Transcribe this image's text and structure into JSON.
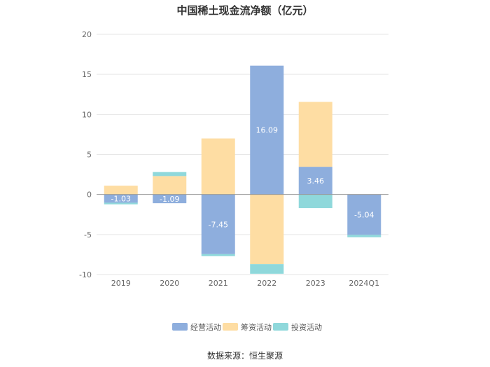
{
  "chart_data": {
    "type": "bar",
    "stacked": true,
    "title": "中国稀土现金流净额（亿元）",
    "categories": [
      "2019",
      "2020",
      "2021",
      "2022",
      "2023",
      "2024Q1"
    ],
    "series": [
      {
        "name": "经营活动",
        "color": "#8eaedd",
        "values": [
          -1.03,
          -1.09,
          -7.45,
          16.09,
          3.46,
          -5.04
        ]
      },
      {
        "name": "筹资活动",
        "color": "#fedda3",
        "values": [
          1.1,
          2.3,
          7.0,
          -8.7,
          8.1,
          0
        ]
      },
      {
        "name": "投资活动",
        "color": "#8fd8db",
        "values": [
          -0.2,
          0.5,
          -0.25,
          -1.2,
          -1.7,
          -0.3
        ]
      }
    ],
    "data_labels": [
      "-1.03",
      "-1.09",
      "-7.45",
      "16.09",
      "3.46",
      "-5.04"
    ],
    "y_ticks": [
      "20",
      "15",
      "10",
      "5",
      "0",
      "-5",
      "-10"
    ],
    "ylim": [
      -10,
      20
    ],
    "grid": true,
    "legend_position": "bottom"
  },
  "source": "数据来源：恒生聚源"
}
